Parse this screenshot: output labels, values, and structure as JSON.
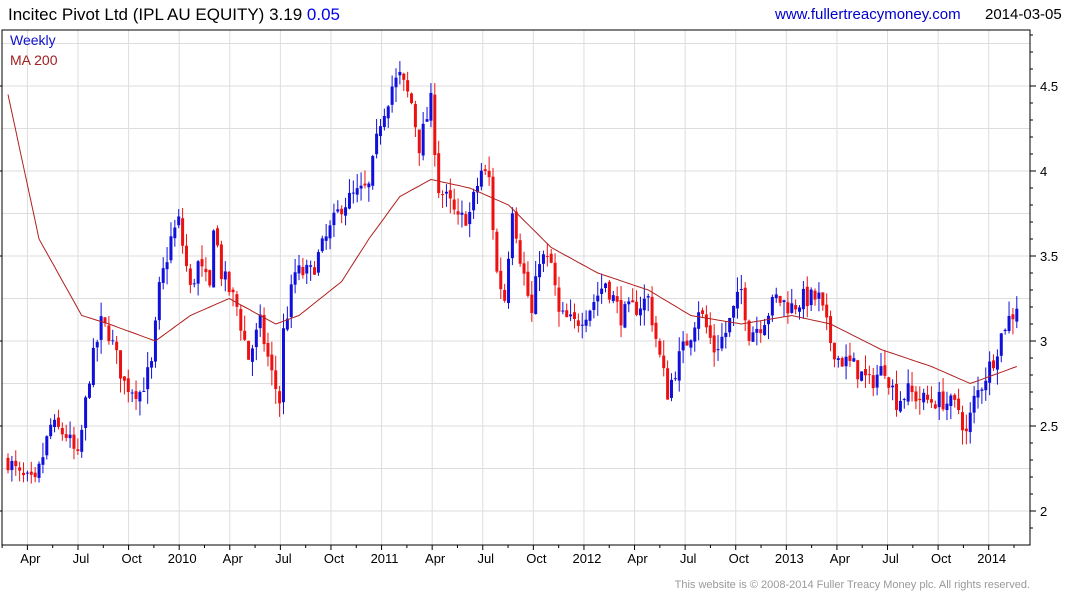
{
  "header": {
    "title": "Incitec Pivot Ltd (IPL AU EQUITY) 3.19",
    "change": "0.05",
    "url": "www.fullertreacymoney.com",
    "date": "2014-03-05"
  },
  "legend": {
    "weekly": "Weekly",
    "ma": "MA 200"
  },
  "footer": "This website is © 2008-2014 Fuller Treacy Money plc. All rights reserved.",
  "colors": {
    "up": "#1010dd",
    "down": "#ee1111",
    "ma": "#b02020",
    "grid": "#dddddd"
  },
  "chart_data": {
    "type": "candlestick",
    "title": "Incitec Pivot Ltd (IPL AU EQUITY)",
    "last": 3.19,
    "change": 0.05,
    "ylim": [
      1.83,
      4.86
    ],
    "yticks": [
      2,
      2.5,
      3,
      3.5,
      4,
      4.5
    ],
    "xticks_first_week": 5,
    "weeks_per_quarter": 13.04,
    "xtick_labels": [
      "Apr",
      "Jul",
      "Oct",
      "2010",
      "Apr",
      "Jul",
      "Oct",
      "2011",
      "Apr",
      "Jul",
      "Oct",
      "2012",
      "Apr",
      "Jul",
      "Oct",
      "2013",
      "Apr",
      "Jul",
      "Oct",
      "2014"
    ],
    "close_keypoints_week_price": [
      [
        0,
        2.3
      ],
      [
        3,
        2.2
      ],
      [
        7,
        2.15
      ],
      [
        11,
        2.5
      ],
      [
        15,
        2.45
      ],
      [
        18,
        2.3
      ],
      [
        21,
        2.8
      ],
      [
        24,
        3.1
      ],
      [
        26,
        3.05
      ],
      [
        30,
        2.75
      ],
      [
        34,
        2.7
      ],
      [
        37,
        2.85
      ],
      [
        39,
        3.3
      ],
      [
        42,
        3.6
      ],
      [
        44,
        3.7
      ],
      [
        47,
        3.3
      ],
      [
        49,
        3.45
      ],
      [
        52,
        3.3
      ],
      [
        53,
        3.7
      ],
      [
        55,
        3.4
      ],
      [
        59,
        3.2
      ],
      [
        62,
        2.9
      ],
      [
        65,
        3.1
      ],
      [
        68,
        2.8
      ],
      [
        70,
        2.65
      ],
      [
        71,
        3.05
      ],
      [
        74,
        3.4
      ],
      [
        78,
        3.4
      ],
      [
        82,
        3.6
      ],
      [
        86,
        3.8
      ],
      [
        89,
        3.85
      ],
      [
        93,
        3.9
      ],
      [
        96,
        4.3
      ],
      [
        99,
        4.5
      ],
      [
        101,
        4.55
      ],
      [
        104,
        4.4
      ],
      [
        106,
        4.15
      ],
      [
        109,
        4.4
      ],
      [
        111,
        3.9
      ],
      [
        114,
        3.8
      ],
      [
        116,
        3.7
      ],
      [
        119,
        3.75
      ],
      [
        122,
        4.0
      ],
      [
        124,
        3.95
      ],
      [
        126,
        3.4
      ],
      [
        128,
        3.25
      ],
      [
        130,
        3.8
      ],
      [
        132,
        3.5
      ],
      [
        135,
        3.15
      ],
      [
        137,
        3.5
      ],
      [
        140,
        3.45
      ],
      [
        142,
        3.15
      ],
      [
        146,
        3.1
      ],
      [
        150,
        3.2
      ],
      [
        154,
        3.35
      ],
      [
        158,
        3.15
      ],
      [
        162,
        3.2
      ],
      [
        165,
        3.25
      ],
      [
        168,
        2.9
      ],
      [
        170,
        2.7
      ],
      [
        173,
        2.9
      ],
      [
        176,
        3.05
      ],
      [
        178,
        3.2
      ],
      [
        182,
        2.95
      ],
      [
        185,
        3.05
      ],
      [
        189,
        3.3
      ],
      [
        191,
        3.05
      ],
      [
        194,
        3.1
      ],
      [
        198,
        3.25
      ],
      [
        202,
        3.2
      ],
      [
        205,
        3.25
      ],
      [
        209,
        3.25
      ],
      [
        212,
        3.0
      ],
      [
        214,
        2.9
      ],
      [
        218,
        2.85
      ],
      [
        222,
        2.75
      ],
      [
        226,
        2.85
      ],
      [
        229,
        2.65
      ],
      [
        232,
        2.7
      ],
      [
        236,
        2.65
      ],
      [
        241,
        2.65
      ],
      [
        245,
        2.6
      ],
      [
        247,
        2.45
      ],
      [
        249,
        2.65
      ],
      [
        252,
        2.8
      ],
      [
        254,
        2.9
      ],
      [
        257,
        3.1
      ],
      [
        260,
        3.19
      ]
    ],
    "ma200_keypoints_week_price": [
      [
        0,
        4.45
      ],
      [
        8,
        3.6
      ],
      [
        19,
        3.15
      ],
      [
        26,
        3.1
      ],
      [
        38,
        3.0
      ],
      [
        47,
        3.15
      ],
      [
        57,
        3.25
      ],
      [
        69,
        3.1
      ],
      [
        75,
        3.15
      ],
      [
        86,
        3.35
      ],
      [
        93,
        3.6
      ],
      [
        101,
        3.85
      ],
      [
        109,
        3.95
      ],
      [
        119,
        3.9
      ],
      [
        129,
        3.8
      ],
      [
        140,
        3.55
      ],
      [
        152,
        3.4
      ],
      [
        165,
        3.3
      ],
      [
        176,
        3.15
      ],
      [
        189,
        3.1
      ],
      [
        202,
        3.15
      ],
      [
        212,
        3.1
      ],
      [
        225,
        2.95
      ],
      [
        238,
        2.85
      ],
      [
        248,
        2.75
      ],
      [
        260,
        2.85
      ]
    ]
  }
}
